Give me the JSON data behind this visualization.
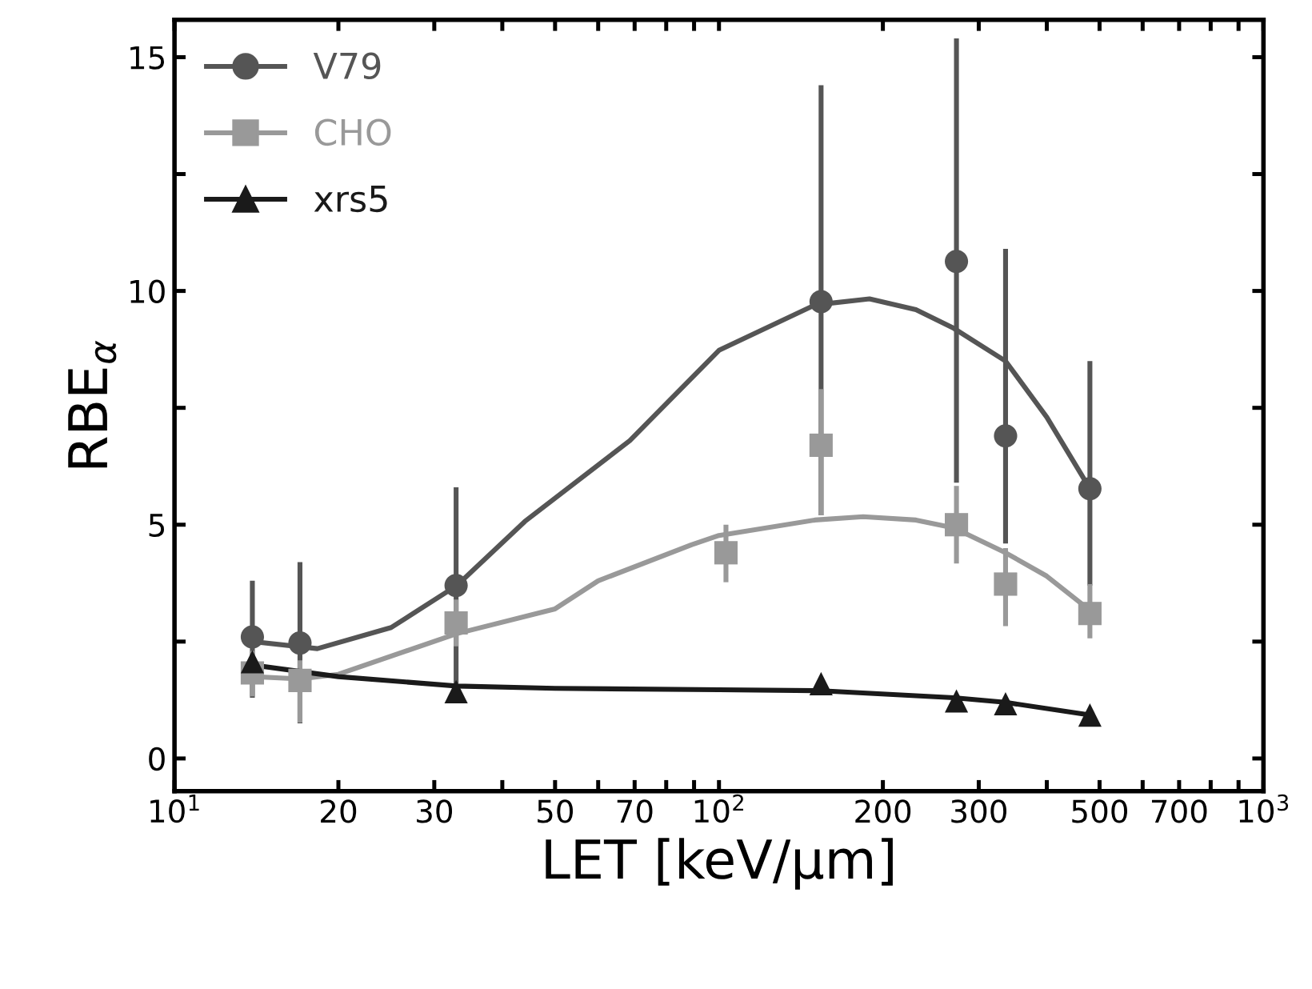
{
  "chart_data": {
    "type": "scatter",
    "xlabel": "LET [keV/μm]",
    "ylabel": "RBE$_{α}$",
    "log": "x",
    "xlim": [
      10,
      1000
    ],
    "ylim": [
      -0.7,
      15.8
    ],
    "xticks": [
      {
        "value": 10,
        "label": "10$^{1}$"
      },
      20,
      30,
      {
        "value": 40,
        "label": null
      },
      50,
      {
        "value": 60,
        "label": null
      },
      70,
      {
        "value": 80,
        "label": null
      },
      {
        "value": 90,
        "label": null
      },
      {
        "value": 100,
        "label": "10$^{2}$"
      },
      200,
      300,
      {
        "value": 400,
        "label": null
      },
      500,
      {
        "value": 600,
        "label": null
      },
      700,
      {
        "value": 800,
        "label": null
      },
      {
        "value": 900,
        "label": null
      },
      {
        "value": 1000,
        "label": "10$^{3}$"
      }
    ],
    "yticks": [
      0,
      {
        "value": 2.5,
        "label": null
      },
      5,
      {
        "value": 7.5,
        "label": null
      },
      10,
      {
        "value": 12.5,
        "label": null
      },
      15
    ],
    "grid": false,
    "legend": "top left",
    "series": [
      {
        "name": "V79",
        "marker": "circle",
        "color": "#555555",
        "x": [
          13.9,
          17,
          32.9,
          154,
          273,
          336,
          480
        ],
        "values": [
          2.6,
          2.47,
          3.7,
          9.77,
          10.63,
          6.9,
          5.77
        ],
        "errors": [
          [
            1.3,
            3.8
          ],
          [
            0.75,
            4.2
          ],
          [
            1.6,
            5.8
          ],
          [
            5.2,
            14.4
          ],
          [
            5.9,
            15.4
          ],
          [
            4.6,
            10.9
          ],
          [
            3.7,
            8.5
          ]
        ]
      },
      {
        "name": "CHO",
        "marker": "square",
        "color": "#999999",
        "x": [
          13.9,
          17,
          32.9,
          103,
          154,
          273,
          336,
          480
        ],
        "values": [
          1.83,
          1.67,
          2.9,
          4.4,
          6.7,
          5.0,
          3.73,
          3.1
        ],
        "errors": [
          [
            1.33,
            2.3
          ],
          [
            0.77,
            2.1
          ],
          [
            2.4,
            3.4
          ],
          [
            3.77,
            5.0
          ],
          [
            5.2,
            7.9
          ],
          [
            4.17,
            5.83
          ],
          [
            2.83,
            4.5
          ],
          [
            2.57,
            3.73
          ]
        ]
      },
      {
        "name": "xrs5",
        "marker": "triangle",
        "color": "#1a1a1a",
        "x": [
          13.9,
          32.9,
          154,
          273,
          336,
          480
        ],
        "values": [
          2.07,
          1.43,
          1.6,
          1.23,
          1.17,
          0.93
        ]
      },
      {
        "type": "line",
        "color": "#555555",
        "x": [
          13.9,
          18.3,
          25,
          33,
          44,
          68.6,
          100,
          150,
          189,
          230,
          270,
          336,
          400,
          480
        ],
        "values": [
          2.5,
          2.35,
          2.8,
          3.7,
          5.07,
          6.8,
          8.73,
          9.7,
          9.83,
          9.6,
          9.2,
          8.5,
          7.3,
          5.77
        ]
      },
      {
        "type": "line",
        "color": "#999999",
        "x": [
          13.9,
          17,
          20,
          33,
          50,
          60,
          89,
          100,
          150,
          184,
          230,
          270,
          336,
          400,
          480
        ],
        "values": [
          1.75,
          1.7,
          1.8,
          2.67,
          3.2,
          3.8,
          4.57,
          4.77,
          5.1,
          5.17,
          5.1,
          4.93,
          4.4,
          3.9,
          3.17
        ]
      },
      {
        "type": "line",
        "color": "#1a1a1a",
        "x": [
          13.9,
          20,
          33,
          50,
          100,
          154,
          270,
          336,
          480
        ],
        "values": [
          2.0,
          1.75,
          1.55,
          1.5,
          1.47,
          1.45,
          1.3,
          1.2,
          0.93
        ]
      }
    ]
  }
}
